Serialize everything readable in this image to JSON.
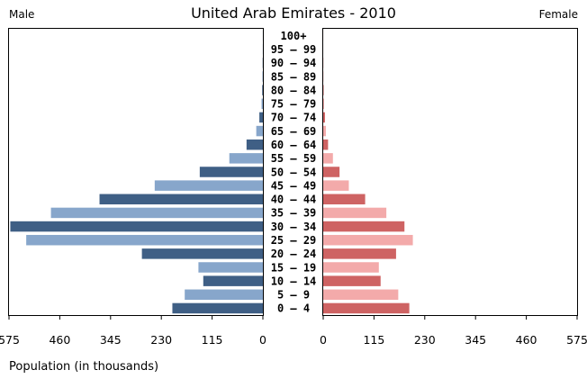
{
  "chart_data": {
    "type": "bar",
    "title": "United Arab Emirates - 2010",
    "left_label": "Male",
    "right_label": "Female",
    "xlabel": "Population (in thousands)",
    "xlim": [
      0,
      575
    ],
    "ticks_left": [
      "575",
      "460",
      "345",
      "230",
      "115",
      "0"
    ],
    "ticks_right": [
      "0",
      "115",
      "230",
      "345",
      "460",
      "575"
    ],
    "tick_values": [
      575,
      460,
      345,
      230,
      115,
      0
    ],
    "categories": [
      "0 – 4",
      "5 – 9",
      "10 – 14",
      "15 – 19",
      "20 – 24",
      "25 – 29",
      "30 – 34",
      "35 – 39",
      "40 – 44",
      "45 – 49",
      "50 – 54",
      "55 – 59",
      "60 – 64",
      "65 – 69",
      "70 – 74",
      "75 – 79",
      "80 – 84",
      "85 – 89",
      "90 – 94",
      "95 – 99",
      "100+"
    ],
    "series": [
      {
        "name": "Male",
        "values": [
          205,
          177,
          135,
          146,
          274,
          536,
          572,
          480,
          370,
          245,
          143,
          76,
          37,
          15,
          8,
          3,
          1.5,
          1,
          0.5,
          0.2,
          0.1
        ]
      },
      {
        "name": "Female",
        "values": [
          195,
          170,
          130,
          126,
          165,
          203,
          184,
          143,
          95,
          58,
          37,
          22,
          11,
          6,
          4,
          2,
          1,
          0.5,
          0.3,
          0.1,
          0.1
        ]
      }
    ],
    "colors": {
      "male_dark": "#3f5f85",
      "male_light": "#87a6cb",
      "female_dark": "#ce6363",
      "female_light": "#f3aaaa",
      "frame": "#000000"
    }
  }
}
